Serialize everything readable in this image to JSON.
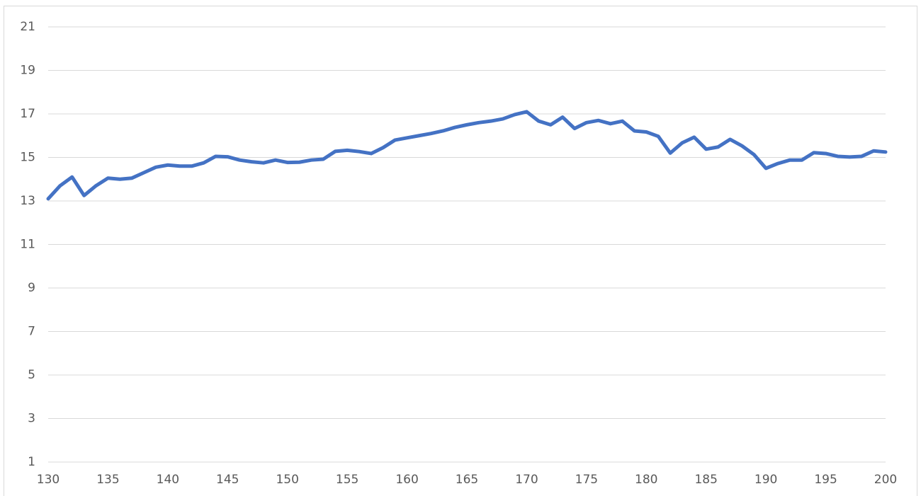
{
  "chart_data": {
    "type": "line",
    "x": [
      130,
      131,
      132,
      133,
      134,
      135,
      136,
      137,
      138,
      139,
      140,
      141,
      142,
      143,
      144,
      145,
      146,
      147,
      148,
      149,
      150,
      151,
      152,
      153,
      154,
      155,
      156,
      157,
      158,
      159,
      160,
      161,
      162,
      163,
      164,
      165,
      166,
      167,
      168,
      169,
      170,
      171,
      172,
      173,
      174,
      175,
      176,
      177,
      178,
      179,
      180,
      181,
      182,
      183,
      184,
      185,
      186,
      187,
      188,
      189,
      190,
      191,
      192,
      193,
      194,
      195,
      196,
      197,
      198,
      199,
      200
    ],
    "series": [
      {
        "name": "series",
        "color": "#4472c4",
        "values": [
          13.1,
          13.7,
          14.1,
          13.25,
          13.7,
          14.05,
          14.0,
          14.05,
          14.3,
          14.55,
          14.65,
          14.6,
          14.6,
          14.75,
          15.05,
          15.03,
          14.88,
          14.8,
          14.75,
          14.88,
          14.77,
          14.78,
          14.88,
          14.92,
          15.28,
          15.33,
          15.27,
          15.18,
          15.45,
          15.8,
          15.9,
          16.0,
          16.1,
          16.22,
          16.38,
          16.5,
          16.6,
          16.67,
          16.77,
          16.97,
          17.1,
          16.67,
          16.5,
          16.85,
          16.33,
          16.6,
          16.7,
          16.55,
          16.67,
          16.22,
          16.17,
          15.97,
          15.2,
          15.67,
          15.93,
          15.38,
          15.48,
          15.83,
          15.53,
          15.13,
          14.5,
          14.72,
          14.88,
          14.88,
          15.22,
          15.18,
          15.05,
          15.02,
          15.05,
          15.3,
          15.25
        ]
      }
    ],
    "xlim": [
      130,
      200
    ],
    "xticks": [
      130,
      135,
      140,
      145,
      150,
      155,
      160,
      165,
      170,
      175,
      180,
      185,
      190,
      195,
      200
    ],
    "ylim": [
      1,
      21
    ],
    "yticks": [
      1,
      3,
      5,
      7,
      9,
      11,
      13,
      15,
      17,
      19,
      21
    ],
    "grid": true
  }
}
